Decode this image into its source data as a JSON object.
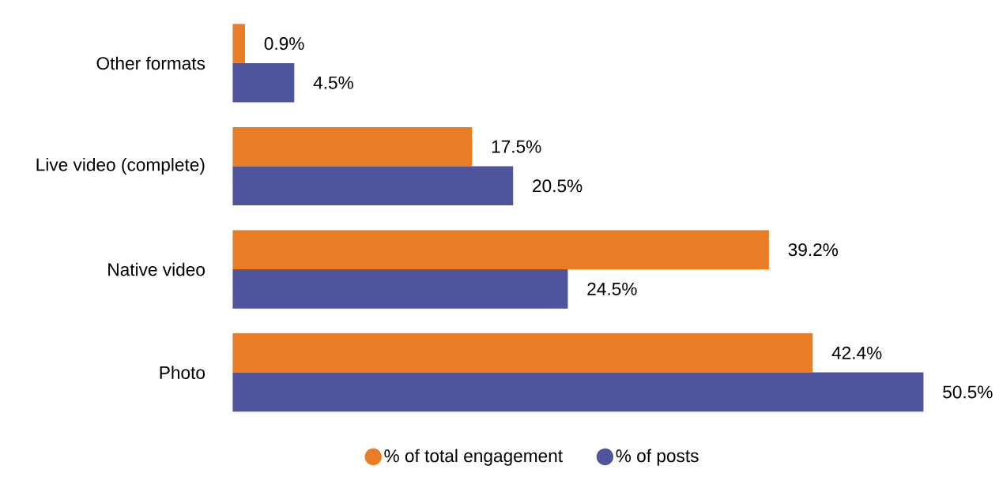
{
  "chart_data": {
    "type": "bar",
    "orientation": "horizontal",
    "categories": [
      "Other formats",
      "Live video (complete)",
      "Native video",
      "Photo"
    ],
    "series": [
      {
        "name": "% of total engagement",
        "color": "#e87d26",
        "values": [
          0.9,
          17.5,
          39.2,
          42.4
        ],
        "value_labels": [
          "0.9%",
          "17.5%",
          "39.2%",
          "42.4%"
        ]
      },
      {
        "name": "% of posts",
        "color": "#4f559c",
        "values": [
          4.5,
          20.5,
          24.5,
          50.5
        ],
        "value_labels": [
          "4.5%",
          "20.5%",
          "24.5%",
          "50.5%"
        ]
      }
    ],
    "tick_labels": "y",
    "legend": "bottom"
  }
}
